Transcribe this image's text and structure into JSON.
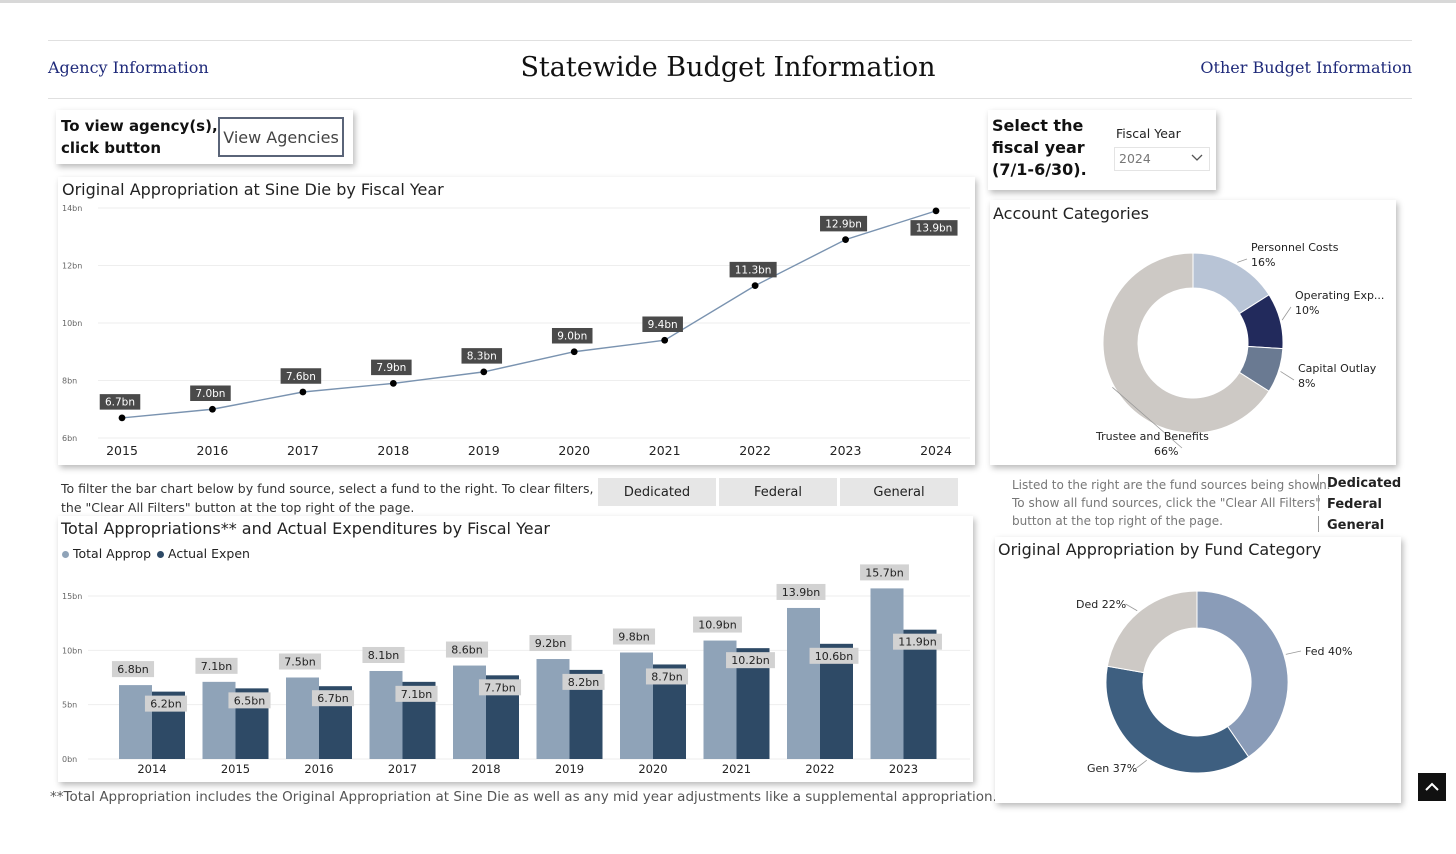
{
  "header": {
    "left_link": "Agency Information",
    "title": "Statewide Budget Information",
    "right_link": "Other Budget Information"
  },
  "agency_box": {
    "prompt_line1": "To view agency(s),",
    "prompt_line2": "click button",
    "button_label": "View Agencies"
  },
  "fiscal_box": {
    "prompt_line1": "Select the",
    "prompt_line2": "fiscal year",
    "prompt_line3": "(7/1-6/30).",
    "dropdown_label": "Fiscal Year",
    "selected_value": "2024"
  },
  "filter_text": {
    "line1": "To filter the bar chart below by fund source, select a fund to the right. To clear filters, click",
    "line2": "the \"Clear All Filters\" button at the top right of the page."
  },
  "fund_buttons": [
    "Dedicated",
    "Federal",
    "General"
  ],
  "fund_note": {
    "line1": "Listed to the right are the fund sources being shown.",
    "line2": "To show all fund sources, click the \"Clear All Filters\"",
    "line3": "button at the top right of the page."
  },
  "fund_legend": [
    "Dedicated",
    "Federal",
    "General"
  ],
  "footnote": "**Total Appropriation includes the Original Appropriation at Sine Die as well as any mid year adjustments like a supplemental appropriation.",
  "colors": {
    "link": "#1f2a7a",
    "line": "#7a93b0",
    "label_dark": "#4a4a4a",
    "bar_approp": "#8fa3b8",
    "bar_expen": "#2e4a66",
    "label_light": "#d2d2d2"
  },
  "chart_data": [
    {
      "type": "line",
      "title": "Original Appropriation at Sine Die by Fiscal Year",
      "x": [
        "2015",
        "2016",
        "2017",
        "2018",
        "2019",
        "2020",
        "2021",
        "2022",
        "2023",
        "2024"
      ],
      "values": [
        6.7,
        7.0,
        7.6,
        7.9,
        8.3,
        9.0,
        9.4,
        11.3,
        12.9,
        13.9
      ],
      "labels": [
        "6.7bn",
        "7.0bn",
        "7.6bn",
        "7.9bn",
        "8.3bn",
        "9.0bn",
        "9.4bn",
        "11.3bn",
        "12.9bn",
        "13.9bn"
      ],
      "yticks": [
        "6bn",
        "8bn",
        "10bn",
        "12bn",
        "14bn"
      ],
      "ylim": [
        6,
        14
      ],
      "grid": true
    },
    {
      "type": "bar",
      "title": "Total Appropriations** and Actual Expenditures by Fiscal Year",
      "categories": [
        "2014",
        "2015",
        "2016",
        "2017",
        "2018",
        "2019",
        "2020",
        "2021",
        "2022",
        "2023"
      ],
      "series": [
        {
          "name": "Total Approp",
          "values": [
            6.8,
            7.1,
            7.5,
            8.1,
            8.6,
            9.2,
            9.8,
            10.9,
            13.9,
            15.7
          ],
          "labels": [
            "6.8bn",
            "7.1bn",
            "7.5bn",
            "8.1bn",
            "8.6bn",
            "9.2bn",
            "9.8bn",
            "10.9bn",
            "13.9bn",
            "15.7bn"
          ]
        },
        {
          "name": "Actual Expen",
          "values": [
            6.2,
            6.5,
            6.7,
            7.1,
            7.7,
            8.2,
            8.7,
            10.2,
            10.6,
            11.9
          ],
          "labels": [
            "6.2bn",
            "6.5bn",
            "6.7bn",
            "7.1bn",
            "7.7bn",
            "8.2bn",
            "8.7bn",
            "10.2bn",
            "10.6bn",
            "11.9bn"
          ]
        }
      ],
      "yticks": [
        "0bn",
        "5bn",
        "10bn",
        "15bn"
      ],
      "ylim": [
        0,
        15
      ],
      "legend": "top-left",
      "grid": true
    },
    {
      "type": "pie",
      "title": "Account Categories",
      "slices": [
        {
          "label": "Personnel Costs",
          "pct_label": "16%",
          "value": 16,
          "color": "#b8c4d6"
        },
        {
          "label": "Operating Exp...",
          "pct_label": "10%",
          "value": 10,
          "color": "#222a5c"
        },
        {
          "label": "Capital Outlay",
          "pct_label": "8%",
          "value": 8,
          "color": "#6a7a92"
        },
        {
          "label": "Trustee and Benefits",
          "pct_label": "66%",
          "value": 66,
          "color": "#cdc9c5"
        }
      ]
    },
    {
      "type": "pie",
      "title": "Original Appropriation by Fund Category",
      "slices": [
        {
          "label": "Fed 40%",
          "value": 40,
          "color": "#8a9cb8"
        },
        {
          "label": "Gen 37%",
          "value": 37,
          "color": "#3e5f80"
        },
        {
          "label": "Ded 22%",
          "value": 22,
          "color": "#cdc9c5"
        }
      ]
    }
  ]
}
